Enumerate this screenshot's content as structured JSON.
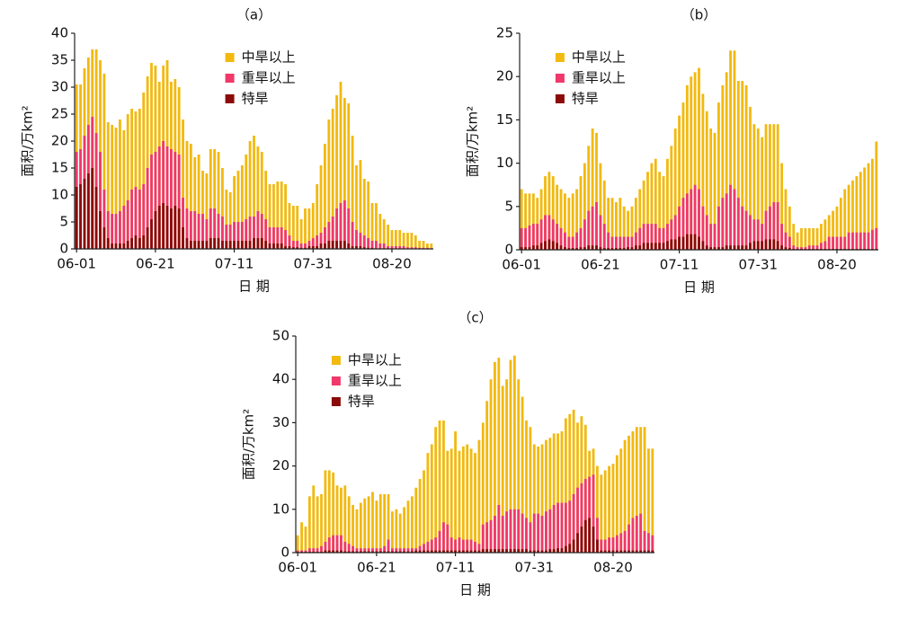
{
  "chart_data": [
    {
      "type": "bar",
      "title": "（a）",
      "xlabel": "日  期",
      "ylabel": "面积/万km²",
      "legend": "upper center",
      "categories": [
        "06-01",
        null,
        null,
        null,
        null,
        null,
        null,
        null,
        null,
        null,
        null,
        null,
        null,
        null,
        null,
        null,
        null,
        null,
        null,
        null,
        "06-21",
        null,
        null,
        null,
        null,
        null,
        null,
        null,
        null,
        null,
        null,
        null,
        null,
        null,
        null,
        null,
        null,
        null,
        null,
        null,
        "07-11",
        null,
        null,
        null,
        null,
        null,
        null,
        null,
        null,
        null,
        null,
        null,
        null,
        null,
        null,
        null,
        null,
        null,
        null,
        null,
        "07-31",
        null,
        null,
        null,
        null,
        null,
        null,
        null,
        null,
        null,
        null,
        null,
        null,
        null,
        null,
        null,
        null,
        null,
        null,
        null,
        "08-20",
        null,
        null,
        null,
        null,
        null,
        null,
        null,
        null,
        null,
        null
      ],
      "ylim": [
        0,
        40
      ],
      "yticks": [
        0,
        5,
        10,
        15,
        20,
        25,
        30,
        35,
        40
      ],
      "series": [
        {
          "name": "中旱以上",
          "color": "#f2b90f",
          "values": [
            30.5,
            30.5,
            33.5,
            35.5,
            37,
            37,
            35,
            32.5,
            23.5,
            23,
            22.5,
            24,
            22,
            25,
            26,
            25.5,
            26,
            29,
            32,
            34.5,
            34,
            31,
            34,
            35,
            31,
            31.5,
            30,
            24,
            20,
            19.5,
            17,
            17.5,
            14.5,
            14,
            18.5,
            18.5,
            18,
            15,
            11,
            10.5,
            13.5,
            14.5,
            15.5,
            17.5,
            20,
            21,
            19,
            18,
            14.5,
            12,
            12,
            12.5,
            12.5,
            12,
            8.5,
            8,
            8,
            5.5,
            7.5,
            7.5,
            8.5,
            12,
            15.5,
            19.5,
            24,
            26,
            28.5,
            31,
            28,
            27,
            21,
            15.5,
            16.5,
            13,
            12.5,
            8.5,
            8.5,
            6.5,
            5.5,
            4.5,
            3.5,
            3.5,
            3.5,
            3,
            3,
            3,
            2.5,
            1.5,
            1.5,
            1,
            1
          ]
        },
        {
          "name": "重旱以上",
          "color": "#f0386b",
          "values": [
            18,
            18.5,
            21,
            23,
            24.5,
            21.5,
            18,
            11,
            7,
            6.5,
            6.5,
            7,
            8,
            9,
            11,
            11.5,
            11,
            12,
            15,
            17.5,
            18,
            19,
            20,
            19,
            18.5,
            18,
            17.5,
            9.5,
            7.5,
            7,
            7,
            6.5,
            6.5,
            5.5,
            7.5,
            7.5,
            6.5,
            6,
            4.5,
            4.5,
            5,
            5,
            5,
            5.5,
            6,
            6,
            7,
            6.5,
            5.5,
            4,
            4,
            4,
            4,
            3.5,
            2.5,
            1.5,
            1.5,
            1,
            1,
            1.5,
            2,
            2.5,
            3,
            4,
            5,
            6,
            7.5,
            8.5,
            9,
            7.5,
            5,
            3.5,
            3,
            2.5,
            2,
            1.5,
            1.5,
            1,
            1,
            0.5,
            0.5,
            0.5,
            0.5,
            0.5,
            0.3,
            0.3,
            0.3,
            0.2,
            0.2,
            0.2,
            0.1
          ]
        },
        {
          "name": "特旱",
          "color": "#8b0a0a",
          "values": [
            11.5,
            12,
            13,
            14,
            15,
            11.5,
            7,
            4,
            2,
            1,
            1,
            1,
            1,
            1.5,
            2,
            2.5,
            2,
            2.5,
            4,
            5.5,
            7,
            8,
            8.5,
            8,
            7.5,
            8,
            7.5,
            4,
            2,
            1.5,
            1.5,
            1.5,
            1.5,
            1.5,
            2,
            2,
            2,
            1.5,
            1.5,
            1.5,
            1.5,
            1.5,
            1.5,
            1.5,
            1.5,
            2,
            2,
            2,
            1.5,
            1,
            1,
            1,
            1,
            0.5,
            0.5,
            0.3,
            0.3,
            0.2,
            0.2,
            0.5,
            0.5,
            0.5,
            1,
            1,
            1.5,
            1.5,
            1.5,
            1.5,
            1.5,
            1,
            0.5,
            0.5,
            0.5,
            0.3,
            0.2,
            0.2,
            0.1,
            0.1,
            0.1,
            0.1,
            0.1,
            0,
            0,
            0,
            0,
            0,
            0,
            0,
            0,
            0,
            0
          ]
        }
      ]
    },
    {
      "type": "bar",
      "title": "（b）",
      "xlabel": "日  期",
      "ylabel": "面积/万km²",
      "legend": "upper left",
      "categories": [
        "06-01",
        null,
        null,
        null,
        null,
        null,
        null,
        null,
        null,
        null,
        null,
        null,
        null,
        null,
        null,
        null,
        null,
        null,
        null,
        null,
        "06-21",
        null,
        null,
        null,
        null,
        null,
        null,
        null,
        null,
        null,
        null,
        null,
        null,
        null,
        null,
        null,
        null,
        null,
        null,
        null,
        "07-11",
        null,
        null,
        null,
        null,
        null,
        null,
        null,
        null,
        null,
        null,
        null,
        null,
        null,
        null,
        null,
        null,
        null,
        null,
        null,
        "07-31",
        null,
        null,
        null,
        null,
        null,
        null,
        null,
        null,
        null,
        null,
        null,
        null,
        null,
        null,
        null,
        null,
        null,
        null,
        null,
        "08-20",
        null,
        null,
        null,
        null,
        null,
        null,
        null,
        null,
        null,
        null
      ],
      "ylim": [
        0,
        25
      ],
      "yticks": [
        0,
        5,
        10,
        15,
        20,
        25
      ],
      "series": [
        {
          "name": "中旱以上",
          "color": "#f2b90f",
          "values": [
            7,
            6.5,
            6.5,
            6.5,
            6,
            7,
            8.5,
            9,
            8.5,
            7.5,
            7,
            6.5,
            6,
            6.5,
            7,
            8.5,
            10,
            12,
            14,
            13.5,
            10,
            8,
            6,
            6,
            5.5,
            6,
            5,
            4.5,
            5,
            6,
            7,
            8,
            9,
            10,
            10.5,
            9,
            8.5,
            10.5,
            12,
            14,
            15.5,
            17,
            19,
            20,
            20.5,
            21,
            18,
            16,
            14,
            13.5,
            17,
            19,
            20.5,
            23,
            23,
            19.5,
            19.5,
            19,
            16.5,
            14.5,
            14,
            13,
            14.5,
            14.5,
            14.5,
            14.5,
            10,
            7,
            5,
            3,
            2,
            2.5,
            2.5,
            2.5,
            2.5,
            2.5,
            3,
            3.5,
            4,
            4.5,
            5,
            6,
            7,
            7.5,
            8,
            8.5,
            9,
            9.5,
            10,
            10.5,
            12.5
          ]
        },
        {
          "name": "重旱以上",
          "color": "#f0386b",
          "values": [
            2.5,
            2.5,
            2.8,
            3,
            3,
            3.5,
            4,
            4,
            3.5,
            3,
            2.5,
            2,
            1.5,
            1.5,
            2,
            2.5,
            3.5,
            4.5,
            5,
            5.5,
            4,
            3,
            2,
            1.5,
            1.5,
            1.5,
            1.5,
            1.5,
            1.5,
            2,
            2.5,
            3,
            3,
            3,
            3,
            2.5,
            2.5,
            3,
            3.5,
            4,
            5,
            6,
            6.5,
            7,
            7.5,
            7,
            5,
            4,
            3,
            3,
            5,
            6,
            6.5,
            7.5,
            7,
            6,
            5,
            4.5,
            4,
            3.5,
            3.5,
            3,
            4.5,
            5,
            5.5,
            5.5,
            3,
            2,
            1.5,
            0.5,
            0.3,
            0.3,
            0.3,
            0.5,
            0.5,
            0.5,
            0.8,
            1,
            1.5,
            1.5,
            1.5,
            1.5,
            1.5,
            2,
            2,
            2,
            2,
            2,
            2,
            2.3,
            2.5
          ]
        },
        {
          "name": "特旱",
          "color": "#8b0a0a",
          "values": [
            0.3,
            0.3,
            0.3,
            0.5,
            0.5,
            0.8,
            1,
            1.2,
            1,
            0.8,
            0.5,
            0.3,
            0.2,
            0.2,
            0.2,
            0.3,
            0.3,
            0.5,
            0.5,
            0.5,
            0.3,
            0.2,
            0.2,
            0.2,
            0.2,
            0.2,
            0.2,
            0.3,
            0.3,
            0.5,
            0.5,
            0.8,
            0.8,
            0.8,
            0.8,
            0.8,
            0.8,
            1,
            1.2,
            1.2,
            1.5,
            1.5,
            1.8,
            1.8,
            1.8,
            1.5,
            1,
            0.5,
            0.3,
            0.3,
            0.3,
            0.3,
            0.5,
            0.5,
            0.5,
            0.5,
            0.5,
            0.5,
            0.8,
            1,
            1,
            1,
            1.2,
            1.2,
            1.2,
            1,
            0.5,
            0.3,
            0.2,
            0.1,
            0.1,
            0.1,
            0.1,
            0.1,
            0.1,
            0.1,
            0.1,
            0.1,
            0.1,
            0.1,
            0.1,
            0.1,
            0.1,
            0.1,
            0.1,
            0.1,
            0.1,
            0.1,
            0.1,
            0.1,
            0.1
          ]
        }
      ]
    },
    {
      "type": "bar",
      "title": "（c）",
      "xlabel": "日  期",
      "ylabel": "面积/万km²",
      "legend": "upper left",
      "categories": [
        "06-01",
        null,
        null,
        null,
        null,
        null,
        null,
        null,
        null,
        null,
        null,
        null,
        null,
        null,
        null,
        null,
        null,
        null,
        null,
        null,
        "06-21",
        null,
        null,
        null,
        null,
        null,
        null,
        null,
        null,
        null,
        null,
        null,
        null,
        null,
        null,
        null,
        null,
        null,
        null,
        null,
        "07-11",
        null,
        null,
        null,
        null,
        null,
        null,
        null,
        null,
        null,
        null,
        null,
        null,
        null,
        null,
        null,
        null,
        null,
        null,
        null,
        "07-31",
        null,
        null,
        null,
        null,
        null,
        null,
        null,
        null,
        null,
        null,
        null,
        null,
        null,
        null,
        null,
        null,
        null,
        null,
        null,
        "08-20",
        null,
        null,
        null,
        null,
        null,
        null,
        null,
        null,
        null,
        null
      ],
      "ylim": [
        0,
        50
      ],
      "yticks": [
        0,
        10,
        20,
        30,
        40,
        50
      ],
      "series": [
        {
          "name": "中旱以上",
          "color": "#f2b90f",
          "values": [
            4,
            7,
            6,
            13,
            15.5,
            13,
            13.5,
            19,
            19,
            18.5,
            15.5,
            15,
            15.5,
            13,
            11,
            10,
            11.5,
            12.5,
            13,
            14,
            12,
            13.5,
            13.5,
            13.5,
            9.5,
            10,
            9,
            10.5,
            12,
            13,
            15,
            17,
            19,
            23,
            25,
            29,
            30.5,
            30.5,
            23.5,
            24,
            28,
            23.5,
            24.5,
            25,
            24,
            23,
            26,
            30,
            35,
            40,
            44,
            45,
            38.5,
            40,
            44.5,
            45.5,
            40,
            36,
            30.5,
            29,
            25,
            24.5,
            25,
            26,
            26.5,
            27.5,
            27.5,
            28,
            31,
            32,
            33,
            30,
            31.5,
            29.5,
            23.5,
            24,
            20,
            18,
            19,
            20,
            20.5,
            22.5,
            24,
            26,
            27,
            28,
            29,
            29,
            29,
            24,
            24
          ]
        },
        {
          "name": "重旱以上",
          "color": "#f0386b",
          "values": [
            0.5,
            0.5,
            0.5,
            1,
            1,
            1,
            1.5,
            2.5,
            3.5,
            4,
            4,
            4,
            2.5,
            2,
            1.5,
            1,
            1,
            1,
            1,
            1,
            1,
            1,
            1.5,
            3,
            1,
            1,
            1,
            1,
            1,
            1,
            1,
            1.5,
            2,
            2.5,
            3,
            3.5,
            5,
            7,
            6.5,
            3.5,
            3,
            3.5,
            3,
            3,
            3,
            2.5,
            2,
            6.5,
            7,
            7.5,
            8.5,
            11,
            8.5,
            9.5,
            10,
            10,
            10,
            9,
            8,
            7,
            9,
            9,
            8.5,
            9.5,
            10,
            11,
            11.5,
            11.5,
            11.5,
            12,
            13.5,
            15,
            16,
            17,
            17.5,
            18,
            8,
            3,
            3,
            3.5,
            3.5,
            4,
            4.5,
            5,
            6.5,
            8,
            8.5,
            9,
            5,
            4.5,
            4
          ]
        },
        {
          "name": "特旱",
          "color": "#8b0a0a",
          "values": [
            0.2,
            0.2,
            0.2,
            0.2,
            0.2,
            0.2,
            0.2,
            0.5,
            0.5,
            0.5,
            0.5,
            0.5,
            0.3,
            0.3,
            0.3,
            0.3,
            0.3,
            0.3,
            0.3,
            0.3,
            0.3,
            0.3,
            0.3,
            0.3,
            0.3,
            0.3,
            0.3,
            0.3,
            0.3,
            0.3,
            0.5,
            0.5,
            0.5,
            0.5,
            0.5,
            0.5,
            0.5,
            0.5,
            0.5,
            0.5,
            0.5,
            0.5,
            0.5,
            0.5,
            0.5,
            0.5,
            0.5,
            0.8,
            0.8,
            0.8,
            0.8,
            0.8,
            0.8,
            0.8,
            0.8,
            0.8,
            0.8,
            0.8,
            0.8,
            0.5,
            0.5,
            0.5,
            0.5,
            0.5,
            0.8,
            0.8,
            1,
            1,
            1.5,
            2,
            3,
            4.5,
            6,
            7.5,
            8,
            6,
            3,
            0.5,
            0.5,
            0.5,
            0.5,
            0.5,
            0.5,
            0.5,
            0.5,
            0.5,
            0.5,
            0.5,
            0.5,
            0.5,
            0.5
          ]
        }
      ]
    }
  ]
}
